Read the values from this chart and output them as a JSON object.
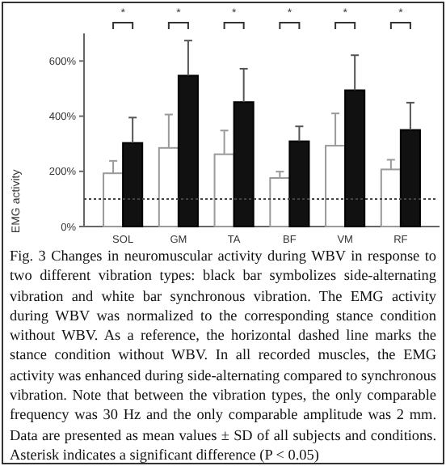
{
  "chart_data": {
    "type": "bar",
    "ylabel": "EMG activity",
    "categories": [
      "SOL",
      "GM",
      "TA",
      "BF",
      "VM",
      "RF"
    ],
    "series": [
      {
        "color": "#ffffff",
        "values": [
          193,
          285,
          262,
          176,
          293,
          207
        ],
        "errors": [
          [
            193,
            238
          ],
          [
            285,
            406
          ],
          [
            262,
            348
          ],
          [
            176,
            199
          ],
          [
            293,
            410
          ],
          [
            207,
            242
          ]
        ]
      },
      {
        "color": "#111111",
        "values": [
          303,
          547,
          451,
          309,
          494,
          350
        ],
        "errors": [
          [
            303,
            395
          ],
          [
            547,
            674
          ],
          [
            451,
            572
          ],
          [
            309,
            363
          ],
          [
            494,
            621
          ],
          [
            350,
            449
          ]
        ]
      }
    ],
    "ylim": [
      0,
      700
    ],
    "yticks": [
      {
        "value": 0,
        "label": "0%"
      },
      {
        "value": 200,
        "label": "200%"
      },
      {
        "value": 400,
        "label": "400%"
      },
      {
        "value": 600,
        "label": "600%"
      }
    ],
    "ref_lines": [
      {
        "axis": "y",
        "value": 100,
        "line_style": "dotted",
        "color": "#444444"
      }
    ],
    "grid": false,
    "annotations": [
      "*",
      "*",
      "*",
      "*",
      "*",
      "*",
      "Fig. 3 Changes in neuromuscular activity during WBV in response to two different vibration types: black bar symbolizes side-alternating vibration and white bar synchronous vibration. The EMG activity during WBV was normalized to the corresponding stance condition without WBV. As a reference, the horizontal dashed line marks the stance condition without WBV. In all recorded muscles, the EMG activity was enhanced during side-alternating compared to synchronous vibration. Note that between the vibration types, the only comparable frequency was 30 Hz and the only comparable amplitude was 2 mm. Data are presented as mean values ± SD of all subjects and conditions. Asterisk indicates a significant difference (P < 0.05)"
    ]
  }
}
